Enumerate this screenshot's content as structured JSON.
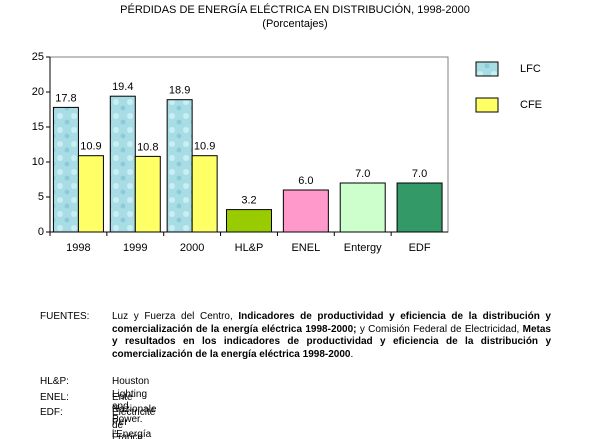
{
  "chart_data": {
    "type": "bar",
    "title": "PÉRDIDAS DE ENERGÍA ELÉCTRICA EN DISTRIBUCIÓN, 1998-2000",
    "subtitle": "(Porcentajes)",
    "categories": [
      "1998",
      "1999",
      "2000",
      "HL&P",
      "ENEL",
      "Entergy",
      "EDF"
    ],
    "series": [
      {
        "name": "LFC",
        "color": "#a9dde6",
        "values": [
          17.8,
          19.4,
          18.9,
          null,
          null,
          null,
          null
        ],
        "value_labels": [
          "17.8",
          "19.4",
          "18.9",
          null,
          null,
          null,
          null
        ]
      },
      {
        "name": "CFE",
        "color": "#ffff66",
        "values": [
          10.9,
          10.8,
          10.9,
          null,
          null,
          null,
          null
        ],
        "value_labels": [
          "10.9",
          "10.8",
          "10.9",
          null,
          null,
          null,
          null
        ]
      },
      {
        "colors": [
          null,
          null,
          null,
          "#99cc00",
          "#ff99cc",
          "#ccffcc",
          "#339966"
        ],
        "values": [
          null,
          null,
          null,
          3.2,
          6.0,
          7.0,
          7.0
        ],
        "value_labels": [
          null,
          null,
          null,
          "3.2",
          "6.0",
          "7.0",
          "7.0"
        ]
      }
    ],
    "ylim": [
      0,
      25
    ],
    "yticks": [
      0,
      5,
      10,
      15,
      20,
      25
    ],
    "grid": false,
    "legend": "right"
  },
  "notes": {
    "sources": {
      "label": "FUENTES:",
      "parts": [
        {
          "text": "Luz y Fuerza del Centro, ",
          "bold": false
        },
        {
          "text": "Indicadores de productividad y eficiencia de la distribución y comercialización de la energía eléctrica 1998-2000;",
          "bold": true
        },
        {
          "text": " y Comisión Federal de Electricidad, ",
          "bold": false
        },
        {
          "text": "Metas y resultados en los indicadores de productividad y eficiencia de la distribución y comercialización de la energía eléctrica 1998-2000",
          "bold": true
        },
        {
          "text": ".",
          "bold": false
        }
      ]
    },
    "abbreviations": [
      {
        "label": "HL&P:",
        "text": "Houston Lighting and Power."
      },
      {
        "label": "ENEL:",
        "text": "Ente Nazionale Per l'Energía Elettrica."
      },
      {
        "label": "EDF:",
        "text": "Electricité de France."
      }
    ]
  }
}
